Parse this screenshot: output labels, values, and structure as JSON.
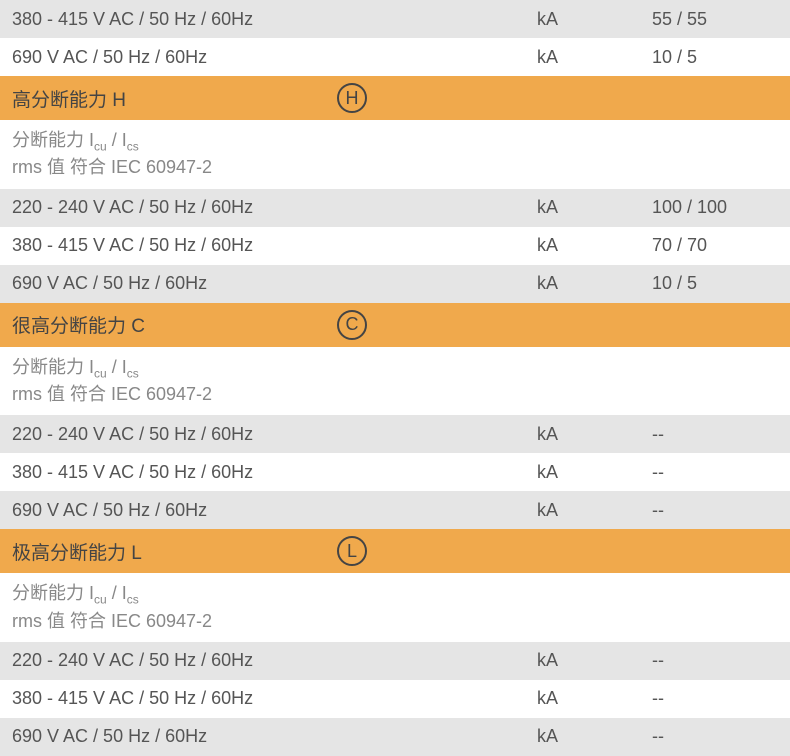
{
  "colors": {
    "row_gray": "#e5e5e5",
    "row_white": "#ffffff",
    "row_orange": "#f0a94c",
    "text_main": "#555555",
    "text_desc": "#888888",
    "circle_border": "#444444"
  },
  "top_rows": [
    {
      "bg": "gray",
      "label": "380 - 415 V AC / 50 Hz / 60Hz",
      "unit": "kA",
      "value": "55 / 55"
    },
    {
      "bg": "white",
      "label": "690 V AC / 50 Hz / 60Hz",
      "unit": "kA",
      "value": "10 / 5"
    }
  ],
  "sections": [
    {
      "header_title": "高分断能力 H",
      "header_letter": "H",
      "desc_line1_prefix": "分断能力 I",
      "desc_line1_sub1": "cu",
      "desc_line1_mid": " / I",
      "desc_line1_sub2": "cs",
      "desc_line2": "rms 值 符合 IEC 60947-2",
      "rows": [
        {
          "bg": "gray",
          "label": "220 - 240 V AC / 50 Hz / 60Hz",
          "unit": "kA",
          "value": "100 / 100"
        },
        {
          "bg": "white",
          "label": "380 - 415 V AC / 50 Hz / 60Hz",
          "unit": "kA",
          "value": "70 / 70"
        },
        {
          "bg": "gray",
          "label": "690 V AC / 50 Hz / 60Hz",
          "unit": "kA",
          "value": "10 / 5"
        }
      ]
    },
    {
      "header_title": "很高分断能力 C",
      "header_letter": "C",
      "desc_line1_prefix": "分断能力 I",
      "desc_line1_sub1": "cu",
      "desc_line1_mid": " / I",
      "desc_line1_sub2": "cs",
      "desc_line2": "rms 值 符合 IEC 60947-2",
      "rows": [
        {
          "bg": "gray",
          "label": "220 - 240 V AC / 50 Hz / 60Hz",
          "unit": "kA",
          "value": "--"
        },
        {
          "bg": "white",
          "label": "380 - 415 V AC / 50 Hz / 60Hz",
          "unit": "kA",
          "value": "--"
        },
        {
          "bg": "gray",
          "label": "690 V AC / 50 Hz / 60Hz",
          "unit": "kA",
          "value": "--"
        }
      ]
    },
    {
      "header_title": "极高分断能力 L",
      "header_letter": "L",
      "desc_line1_prefix": "分断能力 I",
      "desc_line1_sub1": "cu",
      "desc_line1_mid": " / I",
      "desc_line1_sub2": "cs",
      "desc_line2": "rms 值 符合 IEC 60947-2",
      "rows": [
        {
          "bg": "gray",
          "label": "220 - 240 V AC / 50 Hz / 60Hz",
          "unit": "kA",
          "value": "--"
        },
        {
          "bg": "white",
          "label": "380 - 415 V AC / 50 Hz / 60Hz",
          "unit": "kA",
          "value": "--"
        },
        {
          "bg": "gray",
          "label": "690 V AC / 50 Hz / 60Hz",
          "unit": "kA",
          "value": "--"
        }
      ]
    }
  ]
}
